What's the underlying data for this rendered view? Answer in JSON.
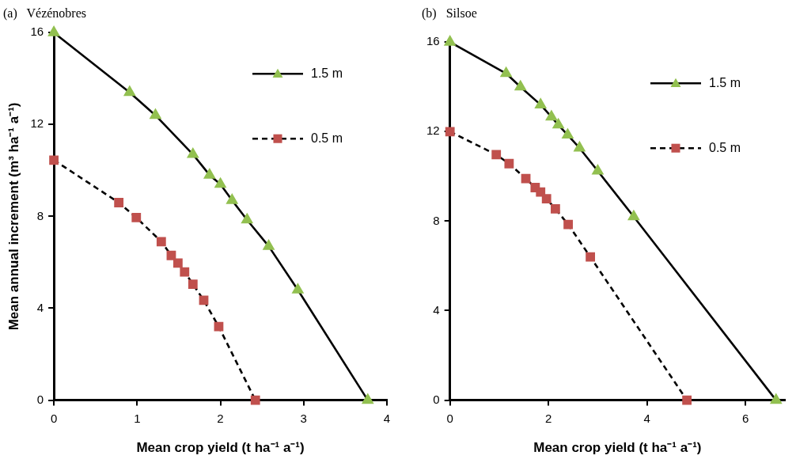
{
  "chart_data": [
    {
      "type": "line",
      "title": "(a)   Vézénobres",
      "xlabel": "Mean crop yield (t ha⁻¹ a⁻¹)",
      "ylabel": "Mean annual increment (m³ ha⁻¹ a⁻¹)",
      "xlim": [
        0,
        4
      ],
      "xticks": [
        0,
        1,
        2,
        3,
        4
      ],
      "ylim": [
        0,
        16
      ],
      "yticks": [
        0,
        4,
        8,
        12,
        16
      ],
      "grid": false,
      "legend": "top right",
      "series": [
        {
          "name": "1.5 m",
          "color": "#92c050",
          "marker": "triangle",
          "line_style": "solid",
          "x": [
            0,
            0.91,
            1.22,
            1.67,
            1.87,
            2.0,
            2.14,
            2.32,
            2.58,
            2.93,
            3.77
          ],
          "values": [
            16,
            13.4,
            12.4,
            10.7,
            9.8,
            9.4,
            8.7,
            7.85,
            6.7,
            4.8,
            0
          ]
        },
        {
          "name": "0.5 m",
          "color": "#c0504d",
          "marker": "square",
          "line_style": "dashed",
          "x": [
            0,
            0.78,
            0.99,
            1.29,
            1.41,
            1.49,
            1.57,
            1.67,
            1.8,
            1.98,
            2.42
          ],
          "values": [
            10.45,
            8.6,
            7.95,
            6.9,
            6.3,
            5.97,
            5.58,
            5.05,
            4.35,
            3.2,
            0
          ]
        }
      ]
    },
    {
      "type": "line",
      "title": "(b)   Silsoe",
      "xlabel": "Mean crop yield (t ha⁻¹ a⁻¹)",
      "xlim": [
        0,
        6.8
      ],
      "xticks": [
        0,
        2,
        4,
        6
      ],
      "ylim": [
        0,
        16
      ],
      "yticks": [
        0,
        4,
        8,
        12,
        16
      ],
      "grid": false,
      "legend": "top right",
      "series": [
        {
          "name": "1.5 m",
          "color": "#92c050",
          "marker": "triangle",
          "line_style": "solid",
          "x": [
            0,
            1.14,
            1.43,
            1.84,
            2.06,
            2.2,
            2.39,
            2.63,
            3.0,
            3.73,
            6.62
          ],
          "values": [
            16,
            14.6,
            14.0,
            13.2,
            12.66,
            12.3,
            11.85,
            11.27,
            10.24,
            8.2,
            0
          ]
        },
        {
          "name": "0.5 m",
          "color": "#c0504d",
          "marker": "square",
          "line_style": "dashed",
          "x": [
            0,
            0.94,
            1.2,
            1.54,
            1.73,
            1.84,
            1.96,
            2.14,
            2.4,
            2.85,
            4.81
          ],
          "values": [
            12.0,
            10.97,
            10.57,
            9.9,
            9.5,
            9.3,
            9.0,
            8.55,
            7.85,
            6.4,
            0
          ]
        }
      ]
    }
  ]
}
